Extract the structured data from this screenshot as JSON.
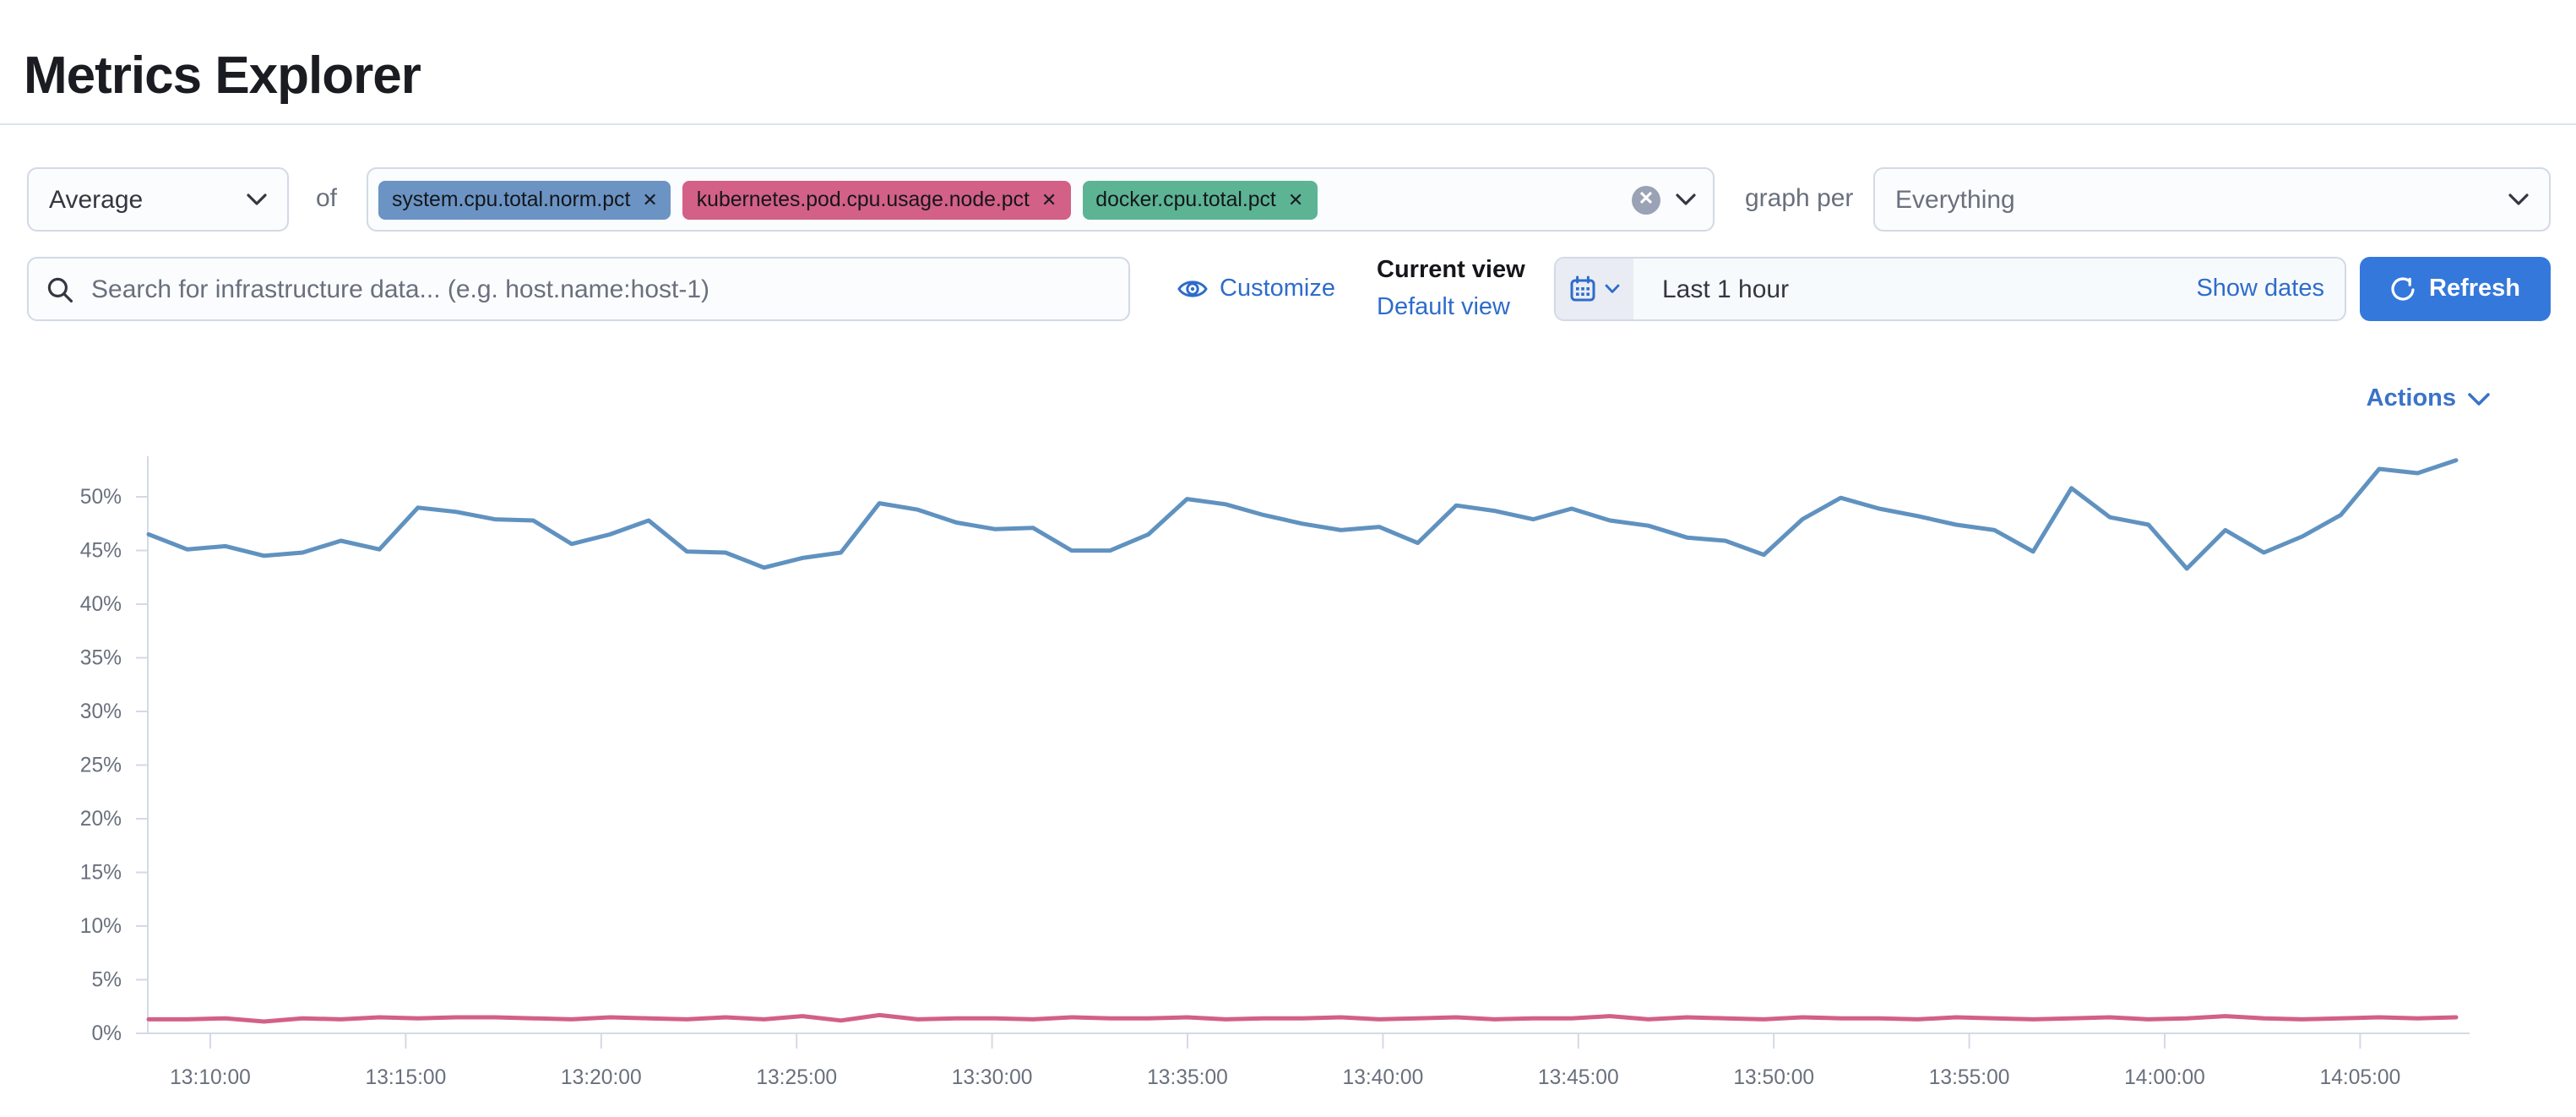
{
  "page": {
    "title": "Metrics Explorer"
  },
  "toolbar": {
    "aggregation": {
      "value": "Average"
    },
    "of_label": "of",
    "metrics": [
      {
        "label": "system.cpu.total.norm.pct",
        "color": "#6b94c4"
      },
      {
        "label": "kubernetes.pod.cpu.usage.node.pct",
        "color": "#d36086"
      },
      {
        "label": "docker.cpu.total.pct",
        "color": "#5cb495"
      }
    ],
    "graph_per_label": "graph per",
    "group_by": {
      "value": "Everything"
    }
  },
  "searchbar": {
    "placeholder": "Search for infrastructure data... (e.g. host.name:host-1)"
  },
  "view_controls": {
    "customize_label": "Customize",
    "current_view_label": "Current view",
    "default_view_label": "Default view"
  },
  "datepicker": {
    "value": "Last 1 hour",
    "show_dates_label": "Show dates"
  },
  "refresh_label": "Refresh",
  "actions_label": "Actions",
  "colors": {
    "link_blue": "#2e6ccb",
    "button_blue": "#3478db",
    "axis_gray": "#d3dae6",
    "tick_text": "#69707d"
  },
  "chart_data": {
    "type": "line",
    "title": "",
    "xlabel": "",
    "ylabel": "",
    "grid": false,
    "legend": "none",
    "ylim": [
      0,
      55
    ],
    "y_tick_labels": [
      "0%",
      "5%",
      "10%",
      "15%",
      "20%",
      "25%",
      "30%",
      "35%",
      "40%",
      "45%",
      "50%"
    ],
    "x_tick_labels": [
      "13:10:00",
      "13:15:00",
      "13:20:00",
      "13:25:00",
      "13:30:00",
      "13:35:00",
      "13:40:00",
      "13:45:00",
      "13:50:00",
      "13:55:00",
      "14:00:00",
      "14:05:00"
    ],
    "x_start": "13:08:00",
    "x_interval_seconds": 60,
    "series": [
      {
        "name": "blue-line",
        "color": "#6092c0",
        "values": [
          46.5,
          45.1,
          45.4,
          44.5,
          44.8,
          45.9,
          45.1,
          49.0,
          48.6,
          47.9,
          47.8,
          45.6,
          46.5,
          47.8,
          44.9,
          44.8,
          43.4,
          44.3,
          44.8,
          49.4,
          48.8,
          47.6,
          47.0,
          47.1,
          45.0,
          45.0,
          46.5,
          49.8,
          49.3,
          48.3,
          47.5,
          46.9,
          47.2,
          45.7,
          49.2,
          48.7,
          47.9,
          48.9,
          47.8,
          47.3,
          46.2,
          45.9,
          44.6,
          47.9,
          49.9,
          48.9,
          48.2,
          47.4,
          46.9,
          44.9,
          50.8,
          48.1,
          47.4,
          43.3,
          46.9,
          44.8,
          46.3,
          48.3,
          52.6,
          52.2,
          53.4
        ]
      },
      {
        "name": "pink-line",
        "color": "#d36086",
        "values": [
          1.3,
          1.3,
          1.4,
          1.1,
          1.4,
          1.3,
          1.5,
          1.4,
          1.5,
          1.5,
          1.4,
          1.3,
          1.5,
          1.4,
          1.3,
          1.5,
          1.3,
          1.6,
          1.2,
          1.7,
          1.3,
          1.4,
          1.4,
          1.3,
          1.5,
          1.4,
          1.4,
          1.5,
          1.3,
          1.4,
          1.4,
          1.5,
          1.3,
          1.4,
          1.5,
          1.3,
          1.4,
          1.4,
          1.6,
          1.3,
          1.5,
          1.4,
          1.3,
          1.5,
          1.4,
          1.4,
          1.3,
          1.5,
          1.4,
          1.3,
          1.4,
          1.5,
          1.3,
          1.4,
          1.6,
          1.4,
          1.3,
          1.4,
          1.5,
          1.4,
          1.5
        ]
      }
    ]
  }
}
